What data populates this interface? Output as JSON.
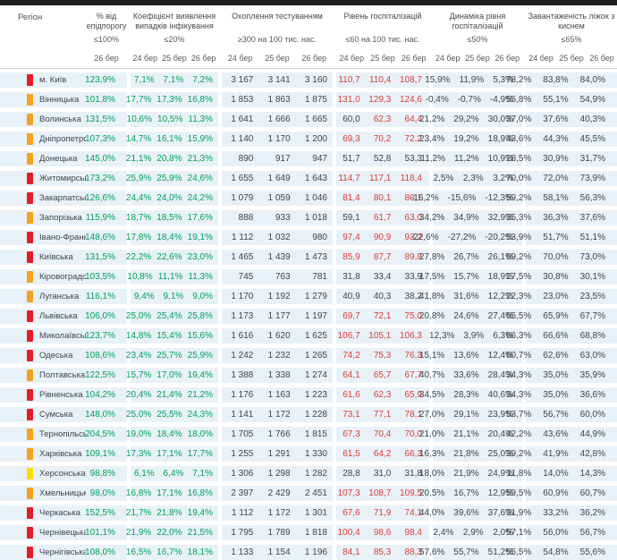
{
  "colors": {
    "green_value": "#00a05a",
    "red_value": "#dd3c35",
    "value_dark": "#3f454b",
    "row_bg": "#e9f1f8",
    "topbar": "#1d1d1b",
    "marker_red": "#e31e25",
    "marker_orange": "#f6a21d",
    "marker_yellow": "#fedc00"
  },
  "chart_data": {
    "type": "table",
    "region_header": "Регіон",
    "groups": [
      {
        "title": "% від епідпорогу",
        "threshold": "≤100%",
        "dates": [
          "26 бер"
        ]
      },
      {
        "title": "Коефіцієнт виявлення випадків інфікування",
        "threshold": "≤20%",
        "dates": [
          "24 бер",
          "25 бер",
          "26 бер"
        ]
      },
      {
        "title": "Охоплення тестуванням",
        "threshold": "≥300 на 100 тис. нас.",
        "dates": [
          "24 бер",
          "25 бер",
          "26 бер"
        ]
      },
      {
        "title": "Рівень госпіталізацій",
        "threshold": "≤60 на 100 тис. нас.",
        "dates": [
          "24 бер",
          "25 бер",
          "26 бер"
        ]
      },
      {
        "title": "Динаміка рівня госпіталізацій",
        "threshold": "≤50%",
        "dates": [
          "24 бер",
          "25 бер",
          "26 бер"
        ]
      },
      {
        "title": "Завантаженість ліжок з киснем",
        "threshold": "≤65%",
        "dates": [
          "24 бер",
          "25 бер",
          "26 бер"
        ]
      }
    ],
    "rows": [
      {
        "name": "м. Київ",
        "marker": "red",
        "epid": "123,9%",
        "coef": [
          "7,1%",
          "7,1%",
          "7,2%"
        ],
        "test": [
          "3 167",
          "3 141",
          "3 160"
        ],
        "hosp": [
          "110,7",
          "110,4",
          "108,7"
        ],
        "hosp_alert": [
          true,
          true,
          true
        ],
        "dyn": [
          "15,9%",
          "11,9%",
          "5,3%"
        ],
        "beds": [
          "78,2%",
          "83,8%",
          "84,0%"
        ]
      },
      {
        "name": "Вінницька",
        "marker": "orange",
        "epid": "101,8%",
        "coef": [
          "17,7%",
          "17,3%",
          "16,8%"
        ],
        "test": [
          "1 853",
          "1 863",
          "1 875"
        ],
        "hosp": [
          "131,0",
          "129,3",
          "124,6"
        ],
        "hosp_alert": [
          true,
          true,
          true
        ],
        "dyn": [
          "-0,4%",
          "-0,7%",
          "-4,9%"
        ],
        "beds": [
          "55,8%",
          "55,1%",
          "54,9%"
        ]
      },
      {
        "name": "Волинська",
        "marker": "orange",
        "epid": "131,5%",
        "coef": [
          "10,6%",
          "10,5%",
          "11,3%"
        ],
        "test": [
          "1 641",
          "1 666",
          "1 665"
        ],
        "hosp": [
          "60,0",
          "62,3",
          "64,4"
        ],
        "hosp_alert": [
          false,
          true,
          true
        ],
        "dyn": [
          "21,2%",
          "29,2%",
          "30,0%"
        ],
        "beds": [
          "37,0%",
          "37,6%",
          "40,3%"
        ]
      },
      {
        "name": "Дніпропетровська",
        "marker": "orange",
        "epid": "107,3%",
        "coef": [
          "14,7%",
          "16,1%",
          "15,9%"
        ],
        "test": [
          "1 140",
          "1 170",
          "1 200"
        ],
        "hosp": [
          "69,3",
          "70,2",
          "72,2"
        ],
        "hosp_alert": [
          true,
          true,
          true
        ],
        "dyn": [
          "23,4%",
          "19,2%",
          "18,9%"
        ],
        "beds": [
          "43,6%",
          "44,3%",
          "45,5%"
        ]
      },
      {
        "name": "Донецька",
        "marker": "orange",
        "epid": "145,0%",
        "coef": [
          "21,1%",
          "20,8%",
          "21,3%"
        ],
        "test": [
          "890",
          "917",
          "947"
        ],
        "hosp": [
          "51,7",
          "52,8",
          "53,3"
        ],
        "hosp_alert": [
          false,
          false,
          false
        ],
        "dyn": [
          "11,2%",
          "11,2%",
          "10,9%"
        ],
        "beds": [
          "28,5%",
          "30,9%",
          "31,7%"
        ]
      },
      {
        "name": "Житомирська",
        "marker": "red",
        "epid": "173,2%",
        "coef": [
          "25,9%",
          "25,9%",
          "24,6%"
        ],
        "test": [
          "1 655",
          "1 649",
          "1 643"
        ],
        "hosp": [
          "114,7",
          "117,1",
          "118,4"
        ],
        "hosp_alert": [
          true,
          true,
          true
        ],
        "dyn": [
          "2,5%",
          "2,3%",
          "3,2%"
        ],
        "beds": [
          "70,0%",
          "72,0%",
          "73,9%"
        ]
      },
      {
        "name": "Закарпатська",
        "marker": "red",
        "epid": "126,6%",
        "coef": [
          "24,4%",
          "24,0%",
          "24,2%"
        ],
        "test": [
          "1 079",
          "1 059",
          "1 046"
        ],
        "hosp": [
          "81,4",
          "80,1",
          "80,1"
        ],
        "hosp_alert": [
          true,
          true,
          true
        ],
        "dyn": [
          "-16,2%",
          "-15,6%",
          "-12,3%"
        ],
        "beds": [
          "59,2%",
          "58,1%",
          "56,3%"
        ]
      },
      {
        "name": "Запорізька",
        "marker": "orange",
        "epid": "115,9%",
        "coef": [
          "18,7%",
          "18,5%",
          "17,6%"
        ],
        "test": [
          "888",
          "933",
          "1 018"
        ],
        "hosp": [
          "59,1",
          "61,7",
          "63,0"
        ],
        "hosp_alert": [
          false,
          true,
          true
        ],
        "dyn": [
          "34,2%",
          "34,9%",
          "32,9%"
        ],
        "beds": [
          "35,3%",
          "36,3%",
          "37,6%"
        ]
      },
      {
        "name": "Івано-Франківська",
        "marker": "red",
        "epid": "148,6%",
        "coef": [
          "17,8%",
          "18,4%",
          "19,1%"
        ],
        "test": [
          "1 112",
          "1 032",
          "980"
        ],
        "hosp": [
          "97,4",
          "90,9",
          "93,2"
        ],
        "hosp_alert": [
          true,
          true,
          true
        ],
        "dyn": [
          "-22,6%",
          "-27,2%",
          "-20,2%"
        ],
        "beds": [
          "53,9%",
          "51,7%",
          "51,1%"
        ]
      },
      {
        "name": "Київська",
        "marker": "red",
        "epid": "131,5%",
        "coef": [
          "22,2%",
          "22,6%",
          "23,0%"
        ],
        "test": [
          "1 465",
          "1 439",
          "1 473"
        ],
        "hosp": [
          "85,9",
          "87,7",
          "89,8"
        ],
        "hosp_alert": [
          true,
          true,
          true
        ],
        "dyn": [
          "27,8%",
          "26,7%",
          "26,1%"
        ],
        "beds": [
          "69,2%",
          "70,0%",
          "73,0%"
        ]
      },
      {
        "name": "Кіровоградська",
        "marker": "orange",
        "epid": "103,5%",
        "coef": [
          "10,8%",
          "11,1%",
          "11,3%"
        ],
        "test": [
          "745",
          "763",
          "781"
        ],
        "hosp": [
          "31,8",
          "33,4",
          "33,9"
        ],
        "hosp_alert": [
          false,
          false,
          false
        ],
        "dyn": [
          "17,5%",
          "15,7%",
          "18,9%"
        ],
        "beds": [
          "27,5%",
          "30,8%",
          "30,1%"
        ]
      },
      {
        "name": "Луганська",
        "marker": "orange",
        "epid": "116,1%",
        "coef": [
          "9,4%",
          "9,1%",
          "9,0%"
        ],
        "test": [
          "1 170",
          "1 192",
          "1 279"
        ],
        "hosp": [
          "40,9",
          "40,3",
          "38,2"
        ],
        "hosp_alert": [
          false,
          false,
          false
        ],
        "dyn": [
          "41,8%",
          "31,6%",
          "12,2%"
        ],
        "beds": [
          "22,3%",
          "23,0%",
          "23,5%"
        ]
      },
      {
        "name": "Львівська",
        "marker": "red",
        "epid": "106,0%",
        "coef": [
          "25,0%",
          "25,4%",
          "25,8%"
        ],
        "test": [
          "1 173",
          "1 177",
          "1 197"
        ],
        "hosp": [
          "69,7",
          "72,1",
          "75,0"
        ],
        "hosp_alert": [
          true,
          true,
          true
        ],
        "dyn": [
          "20,8%",
          "24,6%",
          "27,4%"
        ],
        "beds": [
          "65,5%",
          "65,9%",
          "67,7%"
        ]
      },
      {
        "name": "Миколаївська",
        "marker": "red",
        "epid": "123,7%",
        "coef": [
          "14,8%",
          "15,4%",
          "15,6%"
        ],
        "test": [
          "1 616",
          "1 620",
          "1 625"
        ],
        "hosp": [
          "106,7",
          "105,1",
          "106,3"
        ],
        "hosp_alert": [
          true,
          true,
          true
        ],
        "dyn": [
          "12,3%",
          "3,9%",
          "6,3%"
        ],
        "beds": [
          "66,3%",
          "66,6%",
          "68,8%"
        ]
      },
      {
        "name": "Одеська",
        "marker": "red",
        "epid": "108,6%",
        "coef": [
          "23,4%",
          "25,7%",
          "25,9%"
        ],
        "test": [
          "1 242",
          "1 232",
          "1 265"
        ],
        "hosp": [
          "74,2",
          "75,3",
          "76,3"
        ],
        "hosp_alert": [
          true,
          true,
          true
        ],
        "dyn": [
          "15,1%",
          "13,6%",
          "12,4%"
        ],
        "beds": [
          "60,7%",
          "62,6%",
          "63,0%"
        ]
      },
      {
        "name": "Полтавська",
        "marker": "orange",
        "epid": "122,5%",
        "coef": [
          "15,7%",
          "17,0%",
          "19,4%"
        ],
        "test": [
          "1 388",
          "1 338",
          "1 274"
        ],
        "hosp": [
          "64,1",
          "65,7",
          "67,7"
        ],
        "hosp_alert": [
          true,
          true,
          true
        ],
        "dyn": [
          "40,7%",
          "33,6%",
          "28,4%"
        ],
        "beds": [
          "34,3%",
          "35,0%",
          "35,9%"
        ]
      },
      {
        "name": "Рівненська",
        "marker": "red",
        "epid": "104,2%",
        "coef": [
          "20,4%",
          "21,4%",
          "21,2%"
        ],
        "test": [
          "1 176",
          "1 163",
          "1 223"
        ],
        "hosp": [
          "61,6",
          "62,3",
          "65,9"
        ],
        "hosp_alert": [
          true,
          true,
          true
        ],
        "dyn": [
          "34,5%",
          "28,3%",
          "40,6%"
        ],
        "beds": [
          "34,3%",
          "35,0%",
          "36,6%"
        ]
      },
      {
        "name": "Сумська",
        "marker": "red",
        "epid": "148,0%",
        "coef": [
          "25,0%",
          "25,5%",
          "24,3%"
        ],
        "test": [
          "1 141",
          "1 172",
          "1 228"
        ],
        "hosp": [
          "73,1",
          "77,1",
          "78,1"
        ],
        "hosp_alert": [
          true,
          true,
          true
        ],
        "dyn": [
          "27,0%",
          "29,1%",
          "23,9%"
        ],
        "beds": [
          "53,7%",
          "56,7%",
          "60,0%"
        ]
      },
      {
        "name": "Тернопільська",
        "marker": "orange",
        "epid": "204,5%",
        "coef": [
          "19,0%",
          "18,4%",
          "18,0%"
        ],
        "test": [
          "1 705",
          "1 766",
          "1 815"
        ],
        "hosp": [
          "67,3",
          "70,4",
          "70,0"
        ],
        "hosp_alert": [
          true,
          true,
          true
        ],
        "dyn": [
          "21,0%",
          "21,1%",
          "20,4%"
        ],
        "beds": [
          "42,2%",
          "43,6%",
          "44,9%"
        ]
      },
      {
        "name": "Харківська",
        "marker": "orange",
        "epid": "109,1%",
        "coef": [
          "17,3%",
          "17,1%",
          "17,7%"
        ],
        "test": [
          "1 255",
          "1 291",
          "1 330"
        ],
        "hosp": [
          "61,5",
          "64,2",
          "66,3"
        ],
        "hosp_alert": [
          true,
          true,
          true
        ],
        "dyn": [
          "16,3%",
          "21,8%",
          "25,0%"
        ],
        "beds": [
          "39,2%",
          "41,9%",
          "42,8%"
        ]
      },
      {
        "name": "Херсонська",
        "marker": "yellow",
        "epid": "98,8%",
        "coef": [
          "6,1%",
          "6,4%",
          "7,1%"
        ],
        "test": [
          "1 306",
          "1 298",
          "1 282"
        ],
        "hosp": [
          "28,8",
          "31,0",
          "31,8"
        ],
        "hosp_alert": [
          false,
          false,
          false
        ],
        "dyn": [
          "18,0%",
          "21,9%",
          "24,9%"
        ],
        "beds": [
          "11,8%",
          "14,0%",
          "14,3%"
        ]
      },
      {
        "name": "Хмельницька",
        "marker": "orange",
        "epid": "98,0%",
        "coef": [
          "16,8%",
          "17,1%",
          "16,8%"
        ],
        "test": [
          "2 397",
          "2 429",
          "2 451"
        ],
        "hosp": [
          "107,3",
          "108,7",
          "109,5"
        ],
        "hosp_alert": [
          true,
          true,
          true
        ],
        "dyn": [
          "20,5%",
          "16,7%",
          "12,9%"
        ],
        "beds": [
          "59,5%",
          "60,9%",
          "60,7%"
        ]
      },
      {
        "name": "Черкаська",
        "marker": "red",
        "epid": "152,5%",
        "coef": [
          "21,7%",
          "21,8%",
          "19,4%"
        ],
        "test": [
          "1 112",
          "1 172",
          "1 301"
        ],
        "hosp": [
          "67,6",
          "71,9",
          "74,1"
        ],
        "hosp_alert": [
          true,
          true,
          true
        ],
        "dyn": [
          "44,0%",
          "39,6%",
          "37,6%"
        ],
        "beds": [
          "31,9%",
          "33,2%",
          "36,2%"
        ]
      },
      {
        "name": "Чернівецька",
        "marker": "red",
        "epid": "101,1%",
        "coef": [
          "21,9%",
          "22,0%",
          "21,5%"
        ],
        "test": [
          "1 795",
          "1 789",
          "1 818"
        ],
        "hosp": [
          "100,4",
          "98,6",
          "98,4"
        ],
        "hosp_alert": [
          true,
          true,
          true
        ],
        "dyn": [
          "2,4%",
          "2,9%",
          "2,0%"
        ],
        "beds": [
          "57,1%",
          "56,0%",
          "56,7%"
        ]
      },
      {
        "name": "Чернігівська",
        "marker": "red",
        "epid": "108,0%",
        "coef": [
          "16,5%",
          "16,7%",
          "18,1%"
        ],
        "test": [
          "1 133",
          "1 154",
          "1 196"
        ],
        "hosp": [
          "84,1",
          "85,3",
          "88,3"
        ],
        "hosp_alert": [
          true,
          true,
          true
        ],
        "dyn": [
          "57,6%",
          "55,7%",
          "51,2%"
        ],
        "beds": [
          "55,5%",
          "54,8%",
          "55,6%"
        ]
      }
    ]
  }
}
